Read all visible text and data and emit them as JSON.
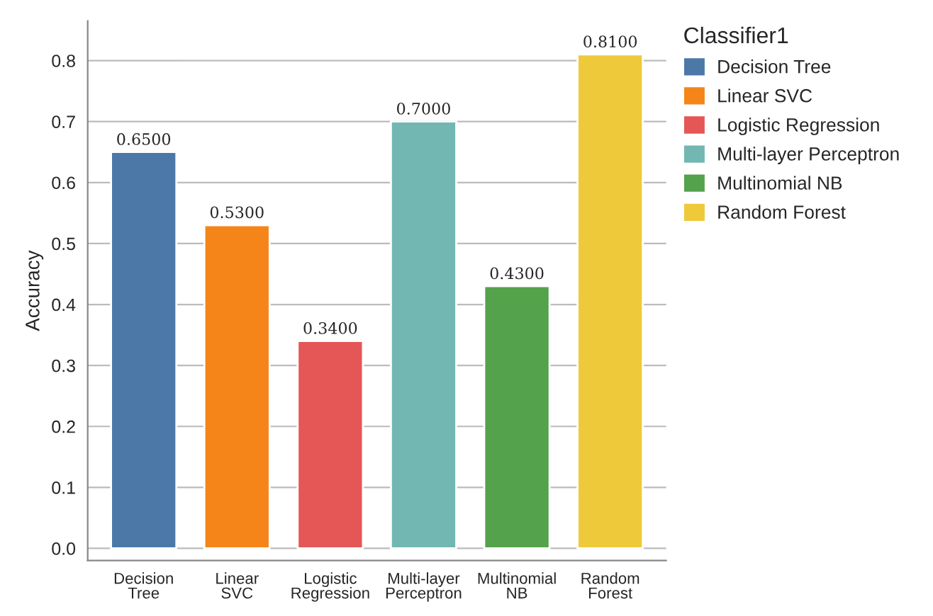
{
  "chart_data": {
    "type": "bar",
    "ylabel": "Accuracy",
    "legend_title": "Classifier1",
    "categories": [
      "Decision\nTree",
      "Linear\nSVC",
      "Logistic\nRegression",
      "Multi-layer\nPerceptron",
      "Multinomial\nNB",
      "Random\nForest"
    ],
    "series": [
      {
        "name": "Decision Tree",
        "color": "#4c78a8",
        "values": [
          0.65,
          null,
          null,
          null,
          null,
          null
        ],
        "value_labels": [
          "0.6500",
          null,
          null,
          null,
          null,
          null
        ]
      },
      {
        "name": "Linear SVC",
        "color": "#f58518",
        "values": [
          null,
          0.53,
          null,
          null,
          null,
          null
        ],
        "value_labels": [
          null,
          "0.5300",
          null,
          null,
          null,
          null
        ]
      },
      {
        "name": "Logistic Regression",
        "color": "#e45756",
        "values": [
          null,
          null,
          0.34,
          null,
          null,
          null
        ],
        "value_labels": [
          null,
          null,
          "0.3400",
          null,
          null,
          null
        ]
      },
      {
        "name": "Multi-layer Perceptron",
        "color": "#72b7b2",
        "values": [
          null,
          null,
          null,
          0.7,
          null,
          null
        ],
        "value_labels": [
          null,
          null,
          null,
          "0.7000",
          null,
          null
        ]
      },
      {
        "name": "Multinomial NB",
        "color": "#54a24b",
        "values": [
          null,
          null,
          null,
          null,
          0.43,
          null
        ],
        "value_labels": [
          null,
          null,
          null,
          null,
          "0.4300",
          null
        ]
      },
      {
        "name": "Random Forest",
        "color": "#eeca3b",
        "values": [
          null,
          null,
          null,
          null,
          null,
          0.81
        ],
        "value_labels": [
          null,
          null,
          null,
          null,
          null,
          "0.8100"
        ]
      }
    ],
    "ylim": [
      -0.02,
      0.865
    ],
    "yticks": [
      {
        "value": 0,
        "label": "0.0"
      },
      {
        "value": 0.1,
        "label": "0.1"
      },
      {
        "value": 0.2,
        "label": "0.2"
      },
      {
        "value": 0.3,
        "label": "0.3"
      },
      {
        "value": 0.4,
        "label": "0.4"
      },
      {
        "value": 0.5,
        "label": "0.5"
      },
      {
        "value": 0.6,
        "label": "0.6"
      },
      {
        "value": 0.7,
        "label": "0.7"
      },
      {
        "value": 0.8,
        "label": "0.8"
      }
    ],
    "grid": "y",
    "legend": "top right"
  }
}
